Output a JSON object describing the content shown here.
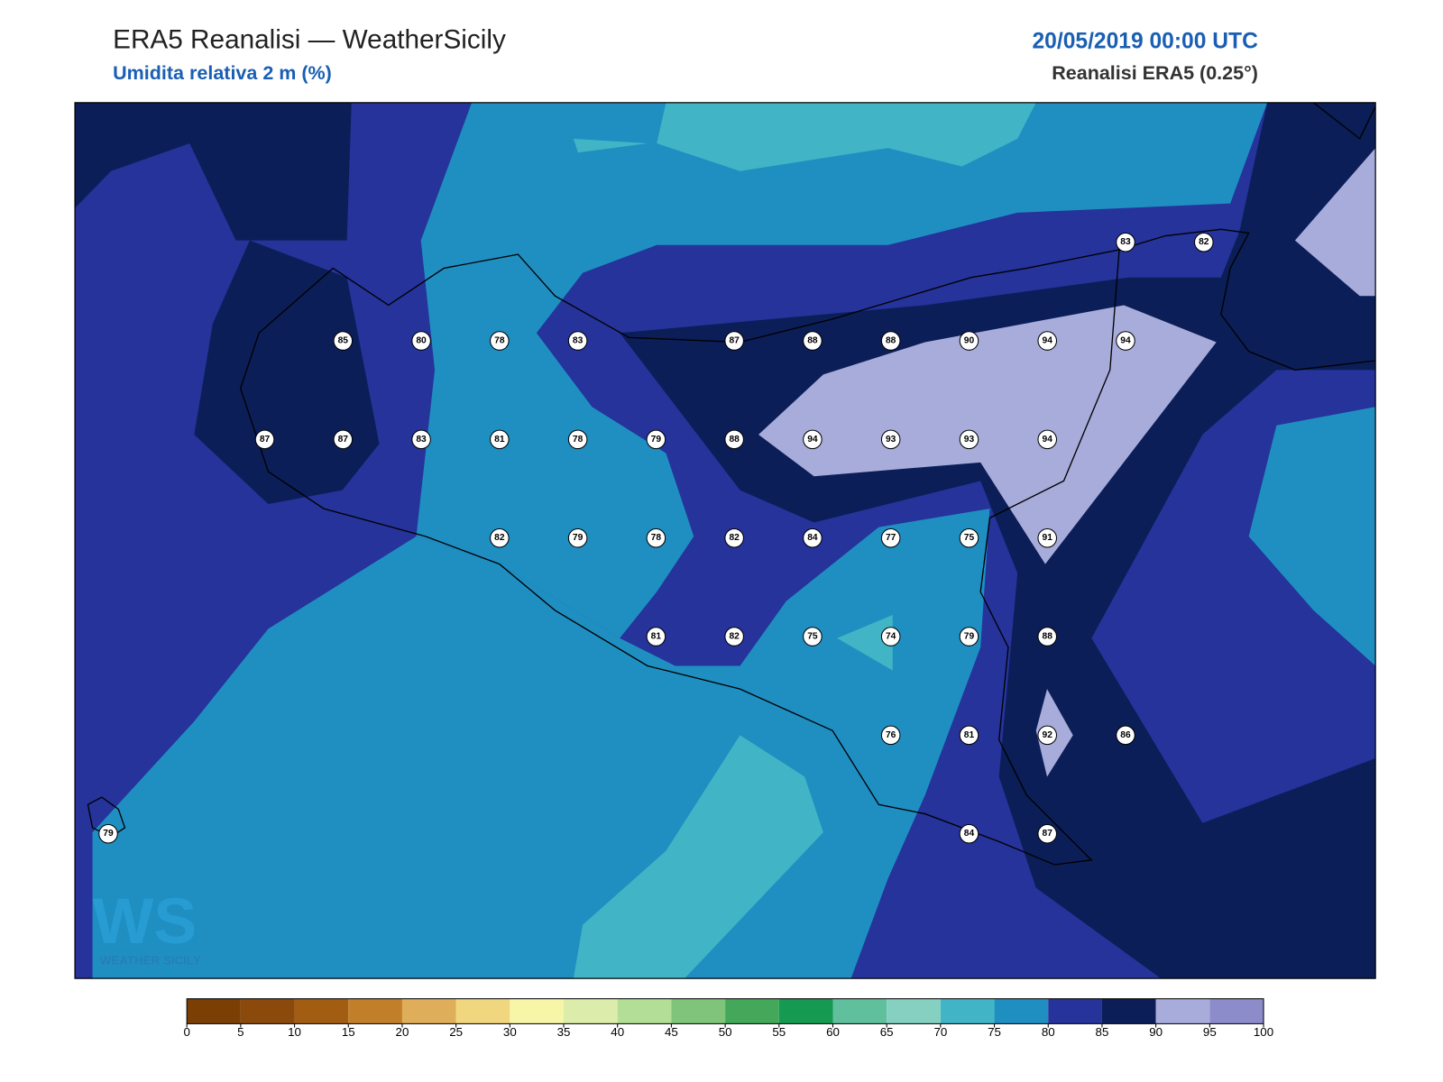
{
  "header": {
    "title": "ERA5 Reanalisi — WeatherSicily",
    "subtitle": "Umidita relativa 2 m (%)",
    "datetime": "20/05/2019 00:00 UTC",
    "source": "Reanalisi ERA5 (0.25°)"
  },
  "stations": [
    [
      null,
      null,
      null,
      null,
      null,
      null,
      null,
      null,
      null,
      null,
      null,
      null,
      null,
      83,
      82
    ],
    [
      null,
      null,
      null,
      85,
      80,
      78,
      83,
      null,
      87,
      88,
      88,
      90,
      94,
      94,
      null
    ],
    [
      null,
      null,
      87,
      87,
      83,
      81,
      78,
      79,
      88,
      94,
      93,
      93,
      94,
      null,
      null
    ],
    [
      null,
      null,
      null,
      null,
      null,
      82,
      79,
      78,
      82,
      84,
      77,
      75,
      91,
      null,
      null
    ],
    [
      null,
      null,
      null,
      null,
      null,
      null,
      null,
      81,
      82,
      75,
      74,
      79,
      88,
      null,
      null
    ],
    [
      null,
      null,
      null,
      null,
      null,
      null,
      null,
      null,
      null,
      null,
      76,
      81,
      92,
      86,
      null
    ],
    [
      79,
      null,
      null,
      null,
      null,
      null,
      null,
      null,
      null,
      null,
      null,
      84,
      87,
      null,
      null
    ]
  ],
  "colorbar": {
    "ticks": [
      0,
      5,
      10,
      15,
      20,
      25,
      30,
      35,
      40,
      45,
      50,
      55,
      60,
      65,
      70,
      75,
      80,
      85,
      90,
      95,
      100
    ],
    "colors": [
      "#7b3f06",
      "#8b4a0c",
      "#a35d13",
      "#c17f2a",
      "#dfae5a",
      "#f0d67f",
      "#f7f5a8",
      "#dcecaa",
      "#b2df95",
      "#7fc47a",
      "#43a85a",
      "#169a52",
      "#60c09e",
      "#86d0c2",
      "#41b5c6",
      "#1f8fc2",
      "#25339a",
      "#0b1e57",
      "#a7acdb",
      "#8d8ccb"
    ]
  },
  "logo": {
    "mark": "WS",
    "name": "WEATHER SICILY"
  }
}
